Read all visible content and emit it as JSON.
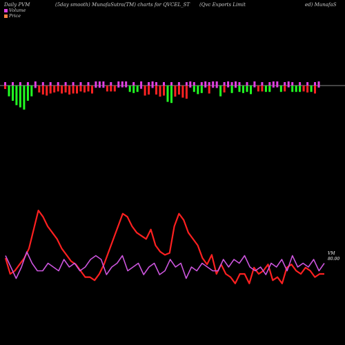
{
  "header": {
    "left": "Daily PVM",
    "mid": "(5day smooth) MunafaSutra(TM) charts for QVCEL_ST",
    "right_a": "(Qvc Exports Limit",
    "right_b": "ed) MunafaS"
  },
  "legend": [
    {
      "label": "Volume",
      "color": "#e040e0"
    },
    {
      "label": "Price",
      "color": "#ff8040"
    }
  ],
  "readout": {
    "label": "VM",
    "value": "80.00"
  },
  "colors": {
    "up": "#22ff22",
    "down": "#ff2222",
    "neutral": "#e040e0",
    "price": "#ff2020",
    "volume": "#cc55dd"
  },
  "chart_data": {
    "type": "bar+line",
    "title": "Daily PVM",
    "bars": {
      "values": [
        4,
        -6,
        -10,
        -14,
        -16,
        -18,
        -10,
        6,
        5,
        -4,
        -6,
        -7,
        -5,
        -4,
        -3,
        -5,
        -4,
        -6,
        -5,
        -5,
        -3,
        -4,
        -3,
        -5,
        -4,
        -4,
        -4,
        -3,
        -3,
        -3,
        -3,
        -2,
        -2,
        -2,
        -3,
        -2,
        -9,
        -7,
        -6,
        -5,
        -6,
        -8,
        -7,
        -11,
        -12,
        -8,
        -6,
        -9,
        -10,
        -3,
        -2,
        -4,
        -3,
        -3,
        -5,
        -4,
        -5,
        -6,
        -4,
        -2,
        -3,
        -4,
        -2,
        -3,
        -2,
        -4,
        -2,
        -3,
        -3,
        -2,
        -2,
        -3,
        -2,
        -2,
        -3,
        -2,
        -2,
        -2,
        -2,
        -3,
        -4,
        -2,
        -5,
        -3
      ],
      "types": [
        "down",
        "up",
        "up",
        "up",
        "up",
        "up",
        "up",
        "up",
        "neutral",
        "down",
        "down",
        "down",
        "down",
        "down",
        "down",
        "down",
        "down",
        "down",
        "down",
        "down",
        "down",
        "down",
        "down",
        "down",
        "neutral",
        "neutral",
        "neutral",
        "down",
        "down",
        "down",
        "neutral",
        "neutral",
        "neutral",
        "up",
        "up",
        "up",
        "neutral",
        "down",
        "down",
        "neutral",
        "down",
        "down",
        "down",
        "up",
        "up",
        "down",
        "down",
        "down",
        "down",
        "neutral",
        "up",
        "up",
        "up",
        "neutral",
        "down",
        "neutral",
        "neutral",
        "up",
        "down",
        "neutral",
        "up",
        "neutral",
        "up",
        "up",
        "up",
        "up",
        "neutral",
        "down",
        "down",
        "up",
        "up",
        "neutral",
        "neutral",
        "up",
        "down",
        "neutral",
        "up",
        "up",
        "up",
        "down",
        "down",
        "up",
        "down",
        "neutral"
      ],
      "up_heights": [
        12,
        14,
        20,
        22,
        26,
        20,
        4
      ],
      "seed": "approximate"
    },
    "price": [
      250,
      225,
      230,
      240,
      250,
      265,
      295,
      325,
      315,
      300,
      290,
      280,
      265,
      255,
      245,
      240,
      230,
      220,
      220,
      215,
      225,
      240,
      260,
      280,
      300,
      320,
      315,
      300,
      290,
      285,
      280,
      295,
      270,
      260,
      255,
      258,
      300,
      320,
      310,
      290,
      280,
      270,
      250,
      240,
      255,
      225,
      240,
      225,
      220,
      210,
      225,
      225,
      210,
      235,
      225,
      230,
      240,
      215,
      220,
      210,
      235,
      240,
      230,
      225,
      235,
      230,
      220,
      225,
      225
    ],
    "volume": [
      245,
      230,
      215,
      230,
      250,
      235,
      225,
      225,
      235,
      230,
      225,
      240,
      230,
      235,
      225,
      230,
      240,
      245,
      240,
      220,
      230,
      235,
      245,
      225,
      230,
      235,
      220,
      230,
      235,
      220,
      225,
      240,
      230,
      235,
      215,
      230,
      225,
      235,
      230,
      225,
      225,
      240,
      230,
      240,
      235,
      245,
      230,
      225,
      230,
      220,
      235,
      230,
      240,
      225,
      245,
      230,
      235,
      230,
      240,
      225,
      235
    ],
    "xlabel": "",
    "ylabel": ""
  }
}
